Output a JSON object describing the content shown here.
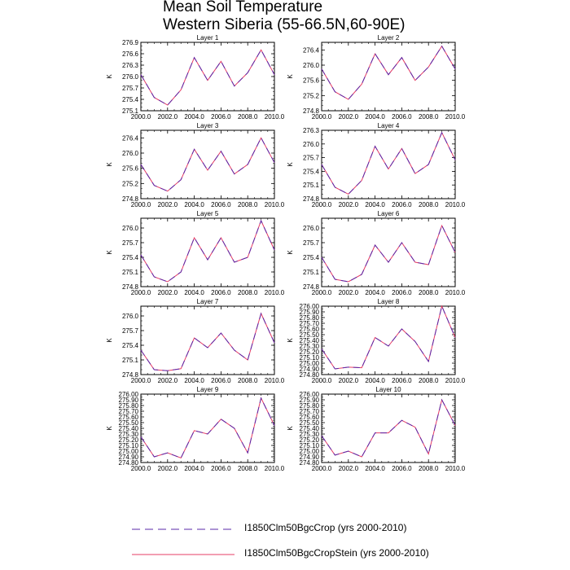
{
  "title_line1": "Mean Soil Temperature",
  "title_line2": "Western Siberia (55-66.5N,60-90E)",
  "colors": {
    "series1": "#5a28a8",
    "series2": "#e63c64"
  },
  "legend": [
    {
      "label": "I1850Clm50BgcCrop (yrs 2000-2010)",
      "style": "dashed"
    },
    {
      "label": "I1850Clm50BgcCropStein (yrs 2000-2010)",
      "style": "solid"
    }
  ],
  "chart_data": [
    {
      "type": "line",
      "title": "Layer 1",
      "ylabel": "K",
      "xlim": [
        2000,
        2010
      ],
      "xticks": [
        2000,
        2002,
        2004,
        2006,
        2008,
        2010
      ],
      "xtick_labels": [
        "2000.0",
        "2002.0",
        "2004.0",
        "2006.0",
        "2008.0",
        "2010.0"
      ],
      "ylim": [
        275.1,
        276.9
      ],
      "yticks": [
        275.1,
        275.4,
        275.7,
        276.0,
        276.3,
        276.6,
        276.9
      ],
      "ytick_labels": [
        "275.1",
        "275.4",
        "275.7",
        "276.0",
        "276.3",
        "276.6",
        "276.9"
      ],
      "x": [
        2000,
        2001,
        2002,
        2003,
        2004,
        2005,
        2006,
        2007,
        2008,
        2009,
        2010
      ],
      "series": [
        {
          "name": "I1850Clm50BgcCrop (yrs 2000-2010)",
          "values": [
            276.05,
            275.45,
            275.25,
            275.65,
            276.5,
            275.9,
            276.4,
            275.75,
            276.1,
            276.7,
            276.05
          ]
        },
        {
          "name": "I1850Clm50BgcCropStein (yrs 2000-2010)",
          "values": [
            276.05,
            275.45,
            275.25,
            275.65,
            276.5,
            275.9,
            276.4,
            275.75,
            276.1,
            276.7,
            276.05
          ]
        }
      ]
    },
    {
      "type": "line",
      "title": "Layer 2",
      "ylabel": "K",
      "xlim": [
        2000,
        2010
      ],
      "xticks": [
        2000,
        2002,
        2004,
        2006,
        2008,
        2010
      ],
      "xtick_labels": [
        "2000.0",
        "2002.0",
        "2004.0",
        "2006.0",
        "2008.0",
        "2010.0"
      ],
      "ylim": [
        274.8,
        276.6
      ],
      "yticks": [
        274.8,
        275.2,
        275.6,
        276.0,
        276.4
      ],
      "ytick_labels": [
        "274.8",
        "275.2",
        "275.6",
        "276.0",
        "276.4"
      ],
      "x": [
        2000,
        2001,
        2002,
        2003,
        2004,
        2005,
        2006,
        2007,
        2008,
        2009,
        2010
      ],
      "series": [
        {
          "name": "I1850Clm50BgcCrop (yrs 2000-2010)",
          "values": [
            275.9,
            275.3,
            275.1,
            275.5,
            276.3,
            275.75,
            276.2,
            275.6,
            275.95,
            276.5,
            275.9
          ]
        },
        {
          "name": "I1850Clm50BgcCropStein (yrs 2000-2010)",
          "values": [
            275.9,
            275.3,
            275.1,
            275.5,
            276.3,
            275.75,
            276.2,
            275.6,
            275.95,
            276.5,
            275.9
          ]
        }
      ]
    },
    {
      "type": "line",
      "title": "Layer 3",
      "ylabel": "K",
      "xlim": [
        2000,
        2010
      ],
      "xticks": [
        2000,
        2002,
        2004,
        2006,
        2008,
        2010
      ],
      "xtick_labels": [
        "2000.0",
        "2002.0",
        "2004.0",
        "2006.0",
        "2008.0",
        "2010.0"
      ],
      "ylim": [
        274.8,
        276.6
      ],
      "yticks": [
        274.8,
        275.2,
        275.6,
        276.0,
        276.4
      ],
      "ytick_labels": [
        "274.8",
        "275.2",
        "275.6",
        "276.0",
        "276.4"
      ],
      "x": [
        2000,
        2001,
        2002,
        2003,
        2004,
        2005,
        2006,
        2007,
        2008,
        2009,
        2010
      ],
      "series": [
        {
          "name": "I1850Clm50BgcCrop (yrs 2000-2010)",
          "values": [
            275.7,
            275.15,
            275.0,
            275.3,
            276.1,
            275.55,
            276.05,
            275.45,
            275.7,
            276.4,
            275.75
          ]
        },
        {
          "name": "I1850Clm50BgcCropStein (yrs 2000-2010)",
          "values": [
            275.7,
            275.15,
            275.0,
            275.3,
            276.1,
            275.55,
            276.05,
            275.45,
            275.7,
            276.4,
            275.75
          ]
        }
      ]
    },
    {
      "type": "line",
      "title": "Layer 4",
      "ylabel": "K",
      "xlim": [
        2000,
        2010
      ],
      "xticks": [
        2000,
        2002,
        2004,
        2006,
        2008,
        2010
      ],
      "xtick_labels": [
        "2000.0",
        "2002.0",
        "2004.0",
        "2006.0",
        "2008.0",
        "2010.0"
      ],
      "ylim": [
        274.8,
        276.3
      ],
      "yticks": [
        274.8,
        275.1,
        275.4,
        275.7,
        276.0,
        276.3
      ],
      "ytick_labels": [
        "274.8",
        "275.1",
        "275.4",
        "275.7",
        "276.0",
        "276.3"
      ],
      "x": [
        2000,
        2001,
        2002,
        2003,
        2004,
        2005,
        2006,
        2007,
        2008,
        2009,
        2010
      ],
      "series": [
        {
          "name": "I1850Clm50BgcCrop (yrs 2000-2010)",
          "values": [
            275.55,
            275.05,
            274.9,
            275.2,
            275.95,
            275.45,
            275.9,
            275.35,
            275.55,
            276.25,
            275.65
          ]
        },
        {
          "name": "I1850Clm50BgcCropStein (yrs 2000-2010)",
          "values": [
            275.55,
            275.05,
            274.9,
            275.2,
            275.95,
            275.45,
            275.9,
            275.35,
            275.55,
            276.25,
            275.65
          ]
        }
      ]
    },
    {
      "type": "line",
      "title": "Layer 5",
      "ylabel": "K",
      "xlim": [
        2000,
        2010
      ],
      "xticks": [
        2000,
        2002,
        2004,
        2006,
        2008,
        2010
      ],
      "xtick_labels": [
        "2000.0",
        "2002.0",
        "2004.0",
        "2006.0",
        "2008.0",
        "2010.0"
      ],
      "ylim": [
        274.8,
        276.2
      ],
      "yticks": [
        274.8,
        275.1,
        275.4,
        275.7,
        276.0
      ],
      "ytick_labels": [
        "274.8",
        "275.1",
        "275.4",
        "275.7",
        "276.0"
      ],
      "x": [
        2000,
        2001,
        2002,
        2003,
        2004,
        2005,
        2006,
        2007,
        2008,
        2009,
        2010
      ],
      "series": [
        {
          "name": "I1850Clm50BgcCrop (yrs 2000-2010)",
          "values": [
            275.45,
            275.0,
            274.9,
            275.1,
            275.8,
            275.35,
            275.8,
            275.3,
            275.4,
            276.15,
            275.55
          ]
        },
        {
          "name": "I1850Clm50BgcCropStein (yrs 2000-2010)",
          "values": [
            275.45,
            275.0,
            274.9,
            275.1,
            275.8,
            275.35,
            275.8,
            275.3,
            275.4,
            276.15,
            275.55
          ]
        }
      ]
    },
    {
      "type": "line",
      "title": "Layer 6",
      "ylabel": "K",
      "xlim": [
        2000,
        2010
      ],
      "xticks": [
        2000,
        2002,
        2004,
        2006,
        2008,
        2010
      ],
      "xtick_labels": [
        "2000.0",
        "2002.0",
        "2004.0",
        "2006.0",
        "2008.0",
        "2010.0"
      ],
      "ylim": [
        274.8,
        276.2
      ],
      "yticks": [
        274.8,
        275.1,
        275.4,
        275.7,
        276.0
      ],
      "ytick_labels": [
        "274.8",
        "275.1",
        "275.4",
        "275.7",
        "276.0"
      ],
      "x": [
        2000,
        2001,
        2002,
        2003,
        2004,
        2005,
        2006,
        2007,
        2008,
        2009,
        2010
      ],
      "series": [
        {
          "name": "I1850Clm50BgcCrop (yrs 2000-2010)",
          "values": [
            275.4,
            274.95,
            274.9,
            275.05,
            275.65,
            275.3,
            275.7,
            275.3,
            275.25,
            276.05,
            275.5
          ]
        },
        {
          "name": "I1850Clm50BgcCropStein (yrs 2000-2010)",
          "values": [
            275.4,
            274.95,
            274.9,
            275.05,
            275.65,
            275.3,
            275.7,
            275.3,
            275.25,
            276.05,
            275.5
          ]
        }
      ]
    },
    {
      "type": "line",
      "title": "Layer 7",
      "ylabel": "K",
      "xlim": [
        2000,
        2010
      ],
      "xticks": [
        2000,
        2002,
        2004,
        2006,
        2008,
        2010
      ],
      "xtick_labels": [
        "2000.0",
        "2002.0",
        "2004.0",
        "2006.0",
        "2008.0",
        "2010.0"
      ],
      "ylim": [
        274.8,
        276.2
      ],
      "yticks": [
        274.8,
        275.1,
        275.4,
        275.7,
        276.0
      ],
      "ytick_labels": [
        "274.8",
        "275.1",
        "275.4",
        "275.7",
        "276.0"
      ],
      "x": [
        2000,
        2001,
        2002,
        2003,
        2004,
        2005,
        2006,
        2007,
        2008,
        2009,
        2010
      ],
      "series": [
        {
          "name": "I1850Clm50BgcCrop (yrs 2000-2010)",
          "values": [
            275.3,
            274.9,
            274.88,
            274.92,
            275.55,
            275.35,
            275.65,
            275.3,
            275.1,
            276.05,
            275.45
          ]
        },
        {
          "name": "I1850Clm50BgcCropStein (yrs 2000-2010)",
          "values": [
            275.3,
            274.9,
            274.88,
            274.92,
            275.55,
            275.35,
            275.65,
            275.3,
            275.1,
            276.05,
            275.45
          ]
        }
      ]
    },
    {
      "type": "line",
      "title": "Layer 8",
      "ylabel": "K",
      "xlim": [
        2000,
        2010
      ],
      "xticks": [
        2000,
        2002,
        2004,
        2006,
        2008,
        2010
      ],
      "xtick_labels": [
        "2000.0",
        "2002.0",
        "2004.0",
        "2006.0",
        "2008.0",
        "2010.0"
      ],
      "ylim": [
        274.8,
        276.0
      ],
      "yticks": [
        274.8,
        274.9,
        275.0,
        275.1,
        275.2,
        275.3,
        275.4,
        275.5,
        275.6,
        275.7,
        275.8,
        275.9,
        276.0
      ],
      "ytick_labels": [
        "274.80",
        "274.90",
        "275.00",
        "275.10",
        "275.20",
        "275.30",
        "275.40",
        "275.50",
        "275.60",
        "275.70",
        "275.80",
        "275.90",
        "276.00"
      ],
      "x": [
        2000,
        2001,
        2002,
        2003,
        2004,
        2005,
        2006,
        2007,
        2008,
        2009,
        2010
      ],
      "series": [
        {
          "name": "I1850Clm50BgcCrop (yrs 2000-2010)",
          "values": [
            275.25,
            274.9,
            274.93,
            274.92,
            275.45,
            275.3,
            275.6,
            275.38,
            275.03,
            276.0,
            275.45
          ]
        },
        {
          "name": "I1850Clm50BgcCropStein (yrs 2000-2010)",
          "values": [
            275.25,
            274.9,
            274.93,
            274.92,
            275.45,
            275.3,
            275.6,
            275.38,
            275.03,
            276.0,
            275.45
          ]
        }
      ]
    },
    {
      "type": "line",
      "title": "Layer 9",
      "ylabel": "K",
      "xlim": [
        2000,
        2010
      ],
      "xticks": [
        2000,
        2002,
        2004,
        2006,
        2008,
        2010
      ],
      "xtick_labels": [
        "2000.0",
        "2002.0",
        "2004.0",
        "2006.0",
        "2008.0",
        "2010.0"
      ],
      "ylim": [
        274.8,
        276.0
      ],
      "yticks": [
        274.8,
        274.9,
        275.0,
        275.1,
        275.2,
        275.3,
        275.4,
        275.5,
        275.6,
        275.7,
        275.8,
        275.9,
        276.0
      ],
      "ytick_labels": [
        "274.80",
        "274.90",
        "275.00",
        "275.10",
        "275.20",
        "275.30",
        "275.40",
        "275.50",
        "275.60",
        "275.70",
        "275.80",
        "275.90",
        "276.00"
      ],
      "x": [
        2000,
        2001,
        2002,
        2003,
        2004,
        2005,
        2006,
        2007,
        2008,
        2009,
        2010
      ],
      "series": [
        {
          "name": "I1850Clm50BgcCrop (yrs 2000-2010)",
          "values": [
            275.25,
            274.9,
            274.97,
            274.88,
            275.36,
            275.3,
            275.56,
            275.4,
            274.97,
            275.93,
            275.45
          ]
        },
        {
          "name": "I1850Clm50BgcCropStein (yrs 2000-2010)",
          "values": [
            275.25,
            274.9,
            274.97,
            274.88,
            275.36,
            275.3,
            275.56,
            275.4,
            274.97,
            275.93,
            275.45
          ]
        }
      ]
    },
    {
      "type": "line",
      "title": "Layer 10",
      "ylabel": "K",
      "xlim": [
        2000,
        2010
      ],
      "xticks": [
        2000,
        2002,
        2004,
        2006,
        2008,
        2010
      ],
      "xtick_labels": [
        "2000.0",
        "2002.0",
        "2004.0",
        "2006.0",
        "2008.0",
        "2010.0"
      ],
      "ylim": [
        274.8,
        276.0
      ],
      "yticks": [
        274.8,
        274.9,
        275.0,
        275.1,
        275.2,
        275.3,
        275.4,
        275.5,
        275.6,
        275.7,
        275.8,
        275.9,
        276.0
      ],
      "ytick_labels": [
        "274.80",
        "274.90",
        "275.00",
        "275.10",
        "275.20",
        "275.30",
        "275.40",
        "275.50",
        "275.60",
        "275.70",
        "275.80",
        "275.90",
        "276.00"
      ],
      "x": [
        2000,
        2001,
        2002,
        2003,
        2004,
        2005,
        2006,
        2007,
        2008,
        2009,
        2010
      ],
      "series": [
        {
          "name": "I1850Clm50BgcCrop (yrs 2000-2010)",
          "values": [
            275.27,
            274.93,
            275.0,
            274.9,
            275.32,
            275.32,
            275.54,
            275.42,
            274.95,
            275.9,
            275.45
          ]
        },
        {
          "name": "I1850Clm50BgcCropStein (yrs 2000-2010)",
          "values": [
            275.27,
            274.93,
            275.0,
            274.9,
            275.32,
            275.32,
            275.54,
            275.42,
            274.95,
            275.9,
            275.45
          ]
        }
      ]
    }
  ]
}
